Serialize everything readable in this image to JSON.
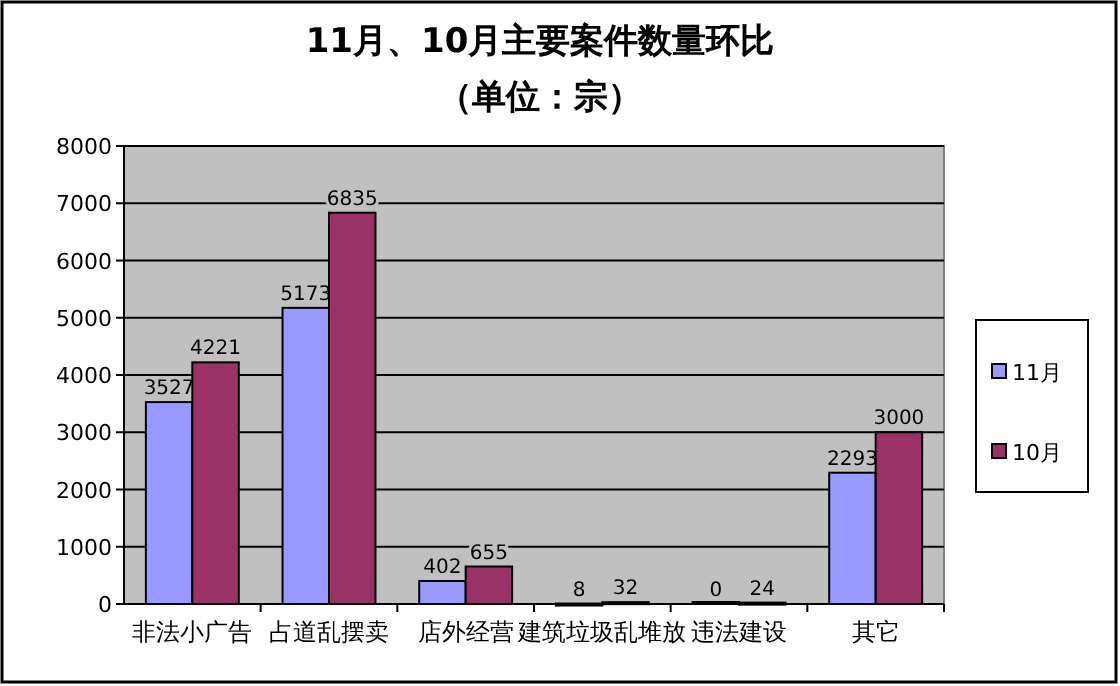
{
  "chart_data": {
    "type": "bar",
    "title": "11月、10月主要案件数量环比",
    "subtitle": "（单位：宗）",
    "categories": [
      "非法小广告",
      "占道乱摆卖",
      "店外经营",
      "建筑垃圾乱堆放",
      "违法建设",
      "其它"
    ],
    "series": [
      {
        "name": "11月",
        "color": "#9999ff",
        "values": [
          3527,
          5173,
          402,
          8,
          0,
          2293
        ]
      },
      {
        "name": "10月",
        "color": "#993366",
        "values": [
          4221,
          6835,
          655,
          32,
          24,
          3000
        ]
      }
    ],
    "ylim": [
      0,
      8000
    ],
    "yticks": [
      0,
      1000,
      2000,
      3000,
      4000,
      5000,
      6000,
      7000,
      8000
    ],
    "grid": "y",
    "legend": "right",
    "data_labels": true
  }
}
